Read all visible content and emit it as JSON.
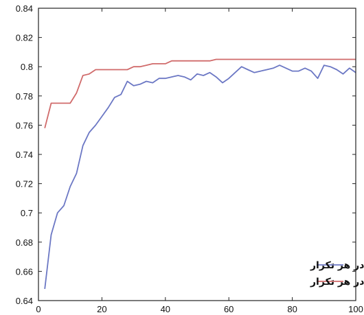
{
  "chart_data": {
    "type": "line",
    "title": "",
    "xlabel": "",
    "ylabel": "",
    "xlim": [
      0,
      100
    ],
    "ylim": [
      0.64,
      0.84
    ],
    "x_ticks": [
      0,
      20,
      40,
      60,
      80,
      100
    ],
    "x_tick_labels": [
      "0",
      "20",
      "40",
      "60",
      "80",
      "100"
    ],
    "y_ticks": [
      0.64,
      0.66,
      0.68,
      0.7,
      0.72,
      0.74,
      0.76,
      0.78,
      0.8,
      0.82,
      0.84
    ],
    "y_tick_labels": [
      "0.64",
      "0.66",
      "0.68",
      "0.7",
      "0.72",
      "0.74",
      "0.76",
      "0.78",
      "0.8",
      "0.82",
      "0.84"
    ],
    "grid": false,
    "legend_position": "bottom-right",
    "series": [
      {
        "name": "میانگین کاپا در هر تکرار",
        "color": "#6b77c4",
        "x": [
          2,
          4,
          6,
          8,
          10,
          12,
          14,
          16,
          18,
          20,
          22,
          24,
          26,
          28,
          30,
          32,
          34,
          36,
          38,
          40,
          42,
          44,
          46,
          48,
          50,
          52,
          54,
          56,
          58,
          60,
          62,
          64,
          66,
          68,
          70,
          72,
          74,
          76,
          78,
          80,
          82,
          84,
          86,
          88,
          90,
          92,
          94,
          96,
          98,
          100
        ],
        "y": [
          0.648,
          0.685,
          0.7,
          0.705,
          0.718,
          0.727,
          0.746,
          0.755,
          0.76,
          0.766,
          0.772,
          0.779,
          0.781,
          0.79,
          0.787,
          0.788,
          0.79,
          0.789,
          0.792,
          0.792,
          0.793,
          0.794,
          0.793,
          0.791,
          0.795,
          0.794,
          0.796,
          0.793,
          0.789,
          0.792,
          0.796,
          0.8,
          0.798,
          0.796,
          0.797,
          0.798,
          0.799,
          0.801,
          0.799,
          0.797,
          0.797,
          0.799,
          0.797,
          0.792,
          0.801,
          0.8,
          0.798,
          0.795,
          0.799,
          0.796
        ]
      },
      {
        "name": "ماکزیمم کاپا در هر تکرار",
        "color": "#d06a6a",
        "x": [
          2,
          4,
          6,
          8,
          10,
          12,
          14,
          16,
          18,
          20,
          22,
          24,
          26,
          28,
          30,
          32,
          34,
          36,
          38,
          40,
          42,
          44,
          46,
          48,
          50,
          52,
          54,
          56,
          58,
          60,
          62,
          64,
          66,
          68,
          70,
          72,
          74,
          76,
          78,
          80,
          82,
          84,
          86,
          88,
          90,
          92,
          94,
          96,
          98,
          100
        ],
        "y": [
          0.758,
          0.775,
          0.775,
          0.775,
          0.775,
          0.782,
          0.794,
          0.795,
          0.798,
          0.798,
          0.798,
          0.798,
          0.798,
          0.798,
          0.8,
          0.8,
          0.801,
          0.802,
          0.802,
          0.802,
          0.804,
          0.804,
          0.804,
          0.804,
          0.804,
          0.804,
          0.804,
          0.805,
          0.805,
          0.805,
          0.805,
          0.805,
          0.805,
          0.805,
          0.805,
          0.805,
          0.805,
          0.805,
          0.805,
          0.805,
          0.805,
          0.805,
          0.805,
          0.805,
          0.805,
          0.805,
          0.805,
          0.805,
          0.805,
          0.805
        ]
      }
    ]
  }
}
